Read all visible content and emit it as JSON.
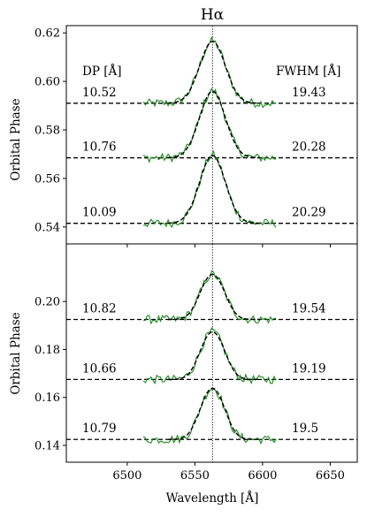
{
  "chart_data": [
    {
      "type": "line",
      "panel": "top",
      "title": "Hα",
      "ylabel": "Orbital Phase",
      "xlabel": "",
      "xlim": [
        6455,
        6670
      ],
      "ylim": [
        0.533,
        0.623
      ],
      "x_ticks": [
        6500,
        6550,
        6600,
        6650
      ],
      "x_ticks_labeled": false,
      "y_ticks": [
        0.54,
        0.56,
        0.58,
        0.6,
        0.62
      ],
      "y_tick_labels": [
        "0.54",
        "0.56",
        "0.58",
        "0.60",
        "0.62"
      ],
      "x_range": [
        6512,
        6610
      ],
      "vertical_line_x": 6563,
      "column_headers": {
        "left": "DP [Å]",
        "right": "FWHM [Å]"
      },
      "spectra": [
        {
          "baseline": 0.591,
          "height": 0.0255,
          "dp": "10.52",
          "fwhm": "19.43",
          "double_peak": false
        },
        {
          "baseline": 0.5685,
          "height": 0.0275,
          "dp": "10.76",
          "fwhm": "20.28",
          "double_peak": false
        },
        {
          "baseline": 0.5415,
          "height": 0.028,
          "dp": "10.09",
          "fwhm": "20.29",
          "double_peak": false
        }
      ]
    },
    {
      "type": "line",
      "panel": "bottom",
      "title": "",
      "ylabel": "Orbital Phase",
      "xlabel": "Wavelength [Å]",
      "xlim": [
        6455,
        6670
      ],
      "ylim": [
        0.133,
        0.224
      ],
      "x_ticks": [
        6500,
        6550,
        6600,
        6650
      ],
      "x_tick_labels": [
        "6500",
        "6550",
        "6600",
        "6650"
      ],
      "y_ticks": [
        0.14,
        0.16,
        0.18,
        0.2
      ],
      "y_tick_labels": [
        "0.14",
        "0.16",
        "0.18",
        "0.20"
      ],
      "x_range": [
        6512,
        6610
      ],
      "vertical_line_x": 6563,
      "spectra": [
        {
          "baseline": 0.1925,
          "height": 0.0185,
          "dp": "10.82",
          "fwhm": "19.54",
          "double_peak": true
        },
        {
          "baseline": 0.1675,
          "height": 0.0195,
          "dp": "10.66",
          "fwhm": "19.19",
          "double_peak": true
        },
        {
          "baseline": 0.1425,
          "height": 0.021,
          "dp": "10.79",
          "fwhm": "19.5",
          "double_peak": true
        }
      ]
    }
  ],
  "colors": {
    "observed": "#1a8a1a",
    "model": "#000000",
    "axes": "#000000"
  }
}
